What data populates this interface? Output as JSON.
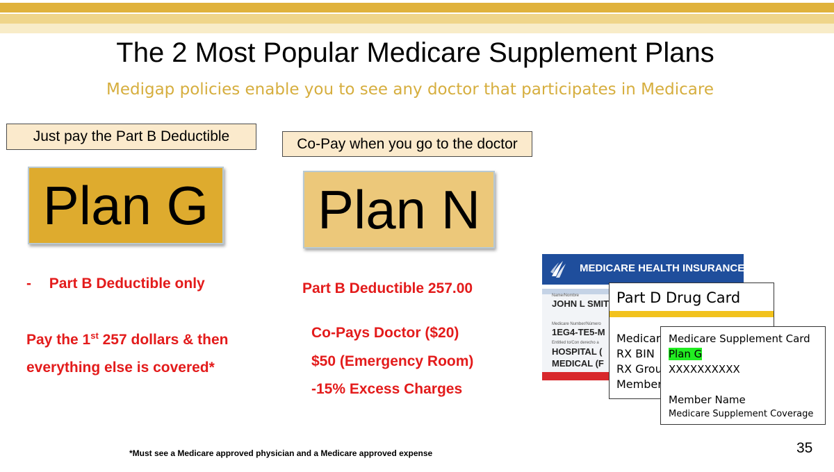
{
  "slide": {
    "title": "The 2 Most Popular Medicare Supplement Plans",
    "subtitle": "Medigap policies enable you to see any doctor that participates in Medicare",
    "footnote": "*Must see a Medicare approved physician and a Medicare approved expense",
    "page_number": "35"
  },
  "colors": {
    "gold_band": "#e0b23c",
    "subtitle_gold": "#d6ae3e",
    "plan_g_fill": "#deab2e",
    "plan_n_fill": "#ecc87a",
    "red_text": "#e31b1b",
    "medicare_blue": "#1f4e9c",
    "partd_yellow": "#f2c21c",
    "highlight_green": "#22ee22"
  },
  "plan_g": {
    "tag": "Just pay the Part B Deductible",
    "label": "Plan G",
    "bullet_dash": "-",
    "bullet": "Part B Deductible only",
    "line1_pre": "Pay the 1",
    "line1_sup": "st",
    "line1_post": " 257 dollars & then",
    "line2": "everything else is covered*"
  },
  "plan_n": {
    "tag": "Co-Pay when you go to the doctor",
    "label": "Plan N",
    "deductible": "Part B Deductible 257.00",
    "copay_doctor": "Co-Pays Doctor ($20)",
    "copay_er": "$50 (Emergency Room)",
    "excess": "-15% Excess Charges"
  },
  "medicare_card": {
    "logo_icon": "hhs-eagle-icon",
    "header": "MEDICARE HEALTH INSURANCE",
    "name_label": "Name/Nombre",
    "name": "JOHN L SMIT",
    "number_label": "Medicare Number/Número",
    "number": "1EG4-TE5-M",
    "entitled_label": "Entitled to/Con derecho a",
    "hospital": "HOSPITAL  (",
    "medical": "MEDICAL  (F"
  },
  "partd_card": {
    "title": "Part D Drug Card",
    "lines": [
      "Medicare",
      "RX BIN",
      "RX Group",
      "Member"
    ]
  },
  "supplement_card": {
    "title": "Medicare Supplement Card",
    "plan": "Plan G",
    "number": "XXXXXXXXXX",
    "member_name": "Member Name",
    "coverage": "Medicare Supplement Coverage"
  }
}
